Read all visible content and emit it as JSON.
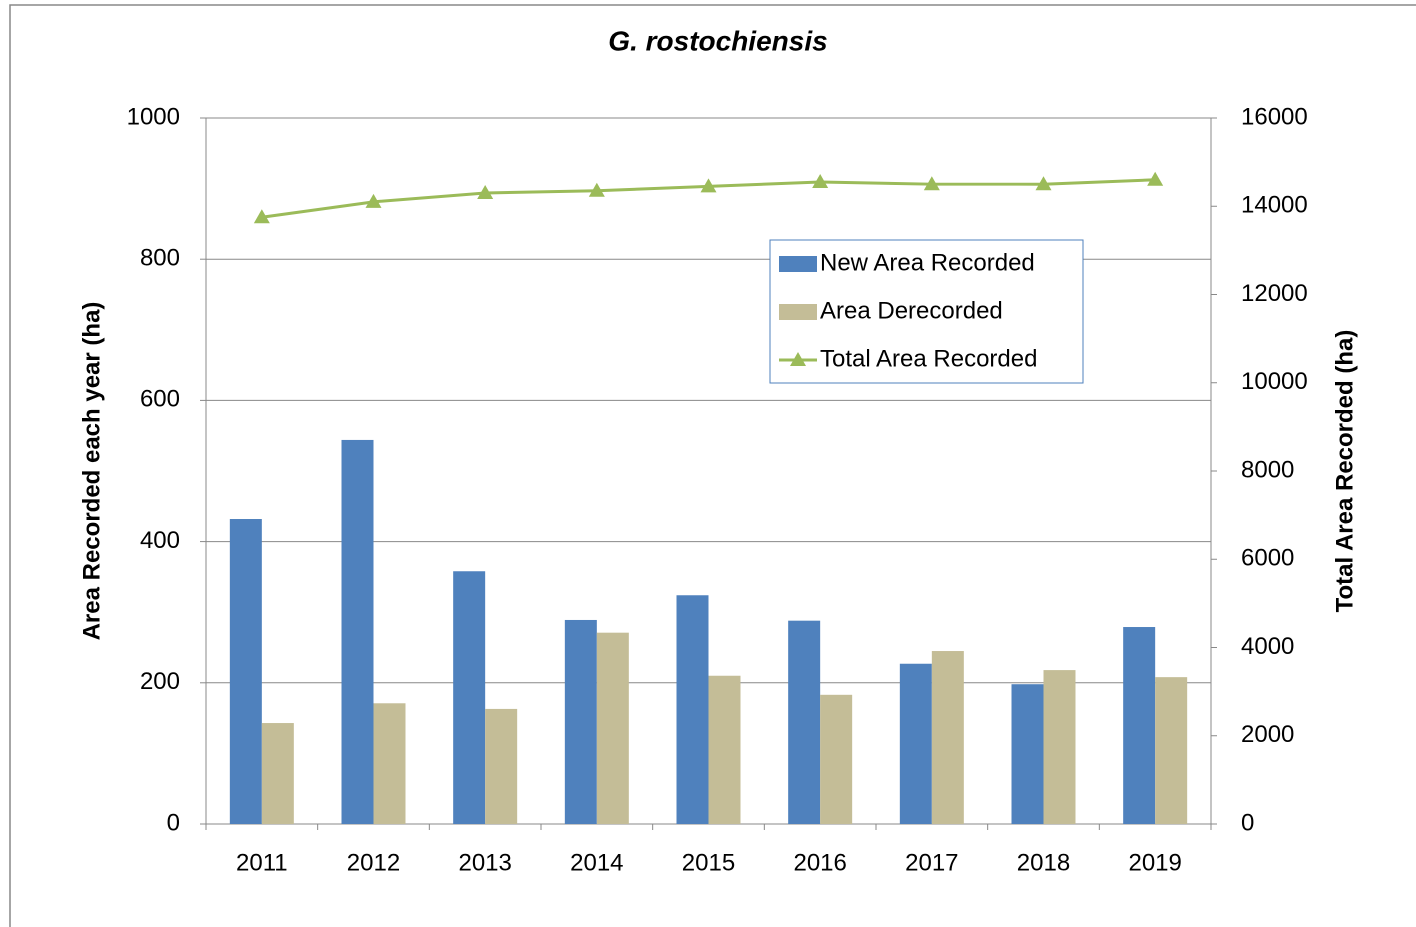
{
  "chart_data": {
    "type": "bar",
    "title": "G. rostochiensis",
    "categories": [
      "2011",
      "2012",
      "2013",
      "2014",
      "2015",
      "2016",
      "2017",
      "2018",
      "2019"
    ],
    "series": [
      {
        "name": "New Area Recorded",
        "color": "#4f81bd",
        "type": "bar",
        "values": [
          432,
          544,
          358,
          289,
          324,
          288,
          227,
          198,
          279
        ]
      },
      {
        "name": "Area Derecorded",
        "color": "#c4bd97",
        "type": "bar",
        "values": [
          143,
          171,
          163,
          271,
          210,
          183,
          245,
          218,
          208
        ]
      },
      {
        "name": "Total Area Recorded",
        "color": "#9bbb59",
        "type": "line",
        "axis": "y2",
        "values": [
          13750,
          14100,
          14300,
          14350,
          14450,
          14550,
          14500,
          14500,
          14600
        ]
      }
    ],
    "ylabel": "Area Recorded each year (ha)",
    "y2label": "Total Area Recorded (ha)",
    "ylim": [
      0,
      1000
    ],
    "yticks": [
      0,
      200,
      400,
      600,
      800,
      1000
    ],
    "y2lim": [
      0,
      16000
    ],
    "y2ticks": [
      0,
      2000,
      4000,
      6000,
      8000,
      10000,
      12000,
      14000,
      16000
    ],
    "grid": true,
    "legend": "upper right"
  }
}
